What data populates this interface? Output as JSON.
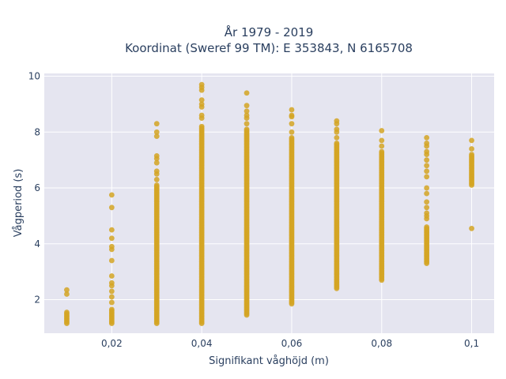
{
  "chart_data": {
    "type": "scatter",
    "title_line1": "År 1979 - 2019",
    "title_line2": "Koordinat (Sweref 99 TM): E 353843, N 6165708",
    "xlabel": "Signifikant våghöjd (m)",
    "ylabel": "Vågperiod (s)",
    "xlim": [
      0.005,
      0.105
    ],
    "ylim": [
      0.8,
      10.1
    ],
    "xticks": [
      0.02,
      0.04,
      0.06,
      0.08,
      0.1
    ],
    "xtick_labels": [
      "0,02",
      "0,04",
      "0,06",
      "0,08",
      "0,1"
    ],
    "yticks": [
      2,
      4,
      6,
      8,
      10
    ],
    "ytick_labels": [
      "2",
      "4",
      "6",
      "8",
      "10"
    ],
    "grid": true,
    "legend": "none",
    "colors": {
      "marker": "#d4a423",
      "plot_bg": "#e5e5f0",
      "grid": "#ffffff",
      "text": "#2a3f5f"
    },
    "series": [
      {
        "columns": [
          {
            "x": 0.01,
            "y_min": 1.15,
            "y_max": 1.55,
            "extra": [
              2.2,
              2.35
            ]
          },
          {
            "x": 0.02,
            "y_min": 1.15,
            "y_max": 1.65,
            "extra": [
              1.9,
              2.1,
              2.3,
              2.5,
              2.6,
              2.85,
              3.4,
              3.8,
              3.9,
              4.2,
              4.5,
              5.3,
              5.75
            ]
          },
          {
            "x": 0.03,
            "y_min": 1.15,
            "y_max": 6.1,
            "extra": [
              6.3,
              6.5,
              6.6,
              6.9,
              7.05,
              7.15,
              7.85,
              8.0,
              8.3
            ]
          },
          {
            "x": 0.04,
            "y_min": 1.15,
            "y_max": 8.2,
            "extra": [
              8.5,
              8.6,
              8.9,
              9.0,
              9.15,
              9.5,
              9.6,
              9.7
            ]
          },
          {
            "x": 0.05,
            "y_min": 1.45,
            "y_max": 8.1,
            "extra": [
              8.3,
              8.5,
              8.6,
              8.75,
              8.95,
              9.4
            ]
          },
          {
            "x": 0.06,
            "y_min": 1.85,
            "y_max": 7.8,
            "extra": [
              8.0,
              8.3,
              8.55,
              8.6,
              8.8
            ]
          },
          {
            "x": 0.07,
            "y_min": 2.4,
            "y_max": 7.6,
            "extra": [
              7.8,
              8.0,
              8.1,
              8.3,
              8.4
            ]
          },
          {
            "x": 0.08,
            "y_min": 2.7,
            "y_max": 7.3,
            "extra": [
              7.5,
              7.7,
              8.05
            ]
          },
          {
            "x": 0.09,
            "y_min": 3.3,
            "y_max": 4.6,
            "extra": [
              4.9,
              5.0,
              5.1,
              5.3,
              5.5,
              5.8,
              6.0,
              6.4,
              6.6,
              6.8,
              7.0,
              7.2,
              7.3,
              7.5,
              7.6,
              7.8
            ]
          },
          {
            "x": 0.1,
            "y_min": 6.1,
            "y_max": 7.2,
            "extra": [
              4.55,
              7.4,
              7.7
            ]
          }
        ]
      }
    ]
  }
}
